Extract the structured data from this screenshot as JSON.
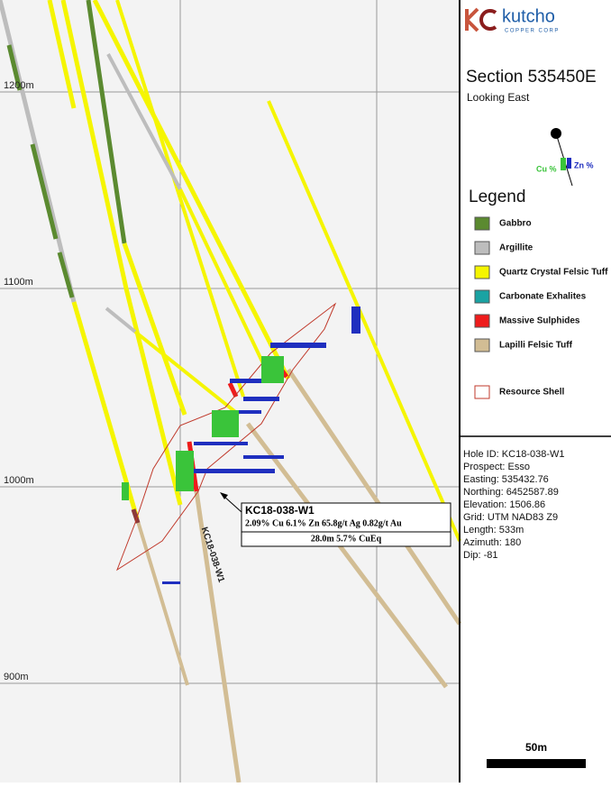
{
  "logo": {
    "name": "kutcho",
    "subtitle": "COPPER CORP"
  },
  "section": {
    "title": "Section 535450E",
    "subtitle": "Looking East"
  },
  "orientation_icon": {
    "cu": "Cu %",
    "zn": "Zn %"
  },
  "legend": {
    "title": "Legend",
    "items": [
      {
        "label": "Gabbro",
        "color": "#5b8a30"
      },
      {
        "label": "Argillite",
        "color": "#bdbdbd"
      },
      {
        "label": "Quartz Crystal Felsic Tuff",
        "color": "#f5f500"
      },
      {
        "label": "Carbonate Exhalites",
        "color": "#1aa3a3"
      },
      {
        "label": "Massive Sulphides",
        "color": "#ee1c1c"
      },
      {
        "label": "Lapilli Felsic Tuff",
        "color": "#d2bd94"
      },
      {
        "label": "Resource Shell",
        "color": "#c0392b",
        "outline": true
      }
    ]
  },
  "elevations": [
    "1200m",
    "1100m",
    "1000m",
    "900m"
  ],
  "hole_info": [
    "Hole ID: KC18-038-W1",
    "Prospect: Esso",
    "Easting: 535432.76",
    "Northing: 6452587.89",
    "Elevation: 1506.86",
    "Grid: UTM NAD83 Z9",
    "Length: 533m",
    "Azimuth: 180",
    "Dip: -81"
  ],
  "callout": {
    "hole": "KC18-038-W1",
    "assay": "2.09% Cu 6.1% Zn 65.8g/t Ag 0.82g/t Au",
    "interval": "28.0m 5.7% CuEq"
  },
  "hole_label": "KC18-038-W1",
  "scale_bar": "50m"
}
